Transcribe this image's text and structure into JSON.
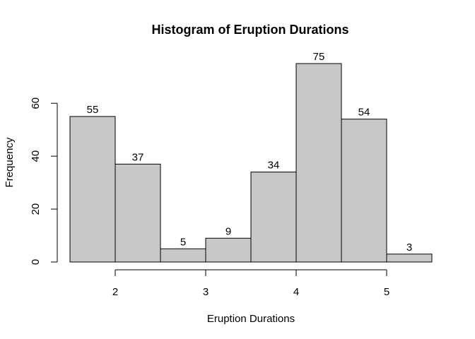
{
  "chart_data": {
    "type": "bar",
    "title": "Histogram of Eruption Durations",
    "xlabel": "Eruption Durations",
    "ylabel": "Frequency",
    "bins": [
      {
        "start": 1.5,
        "end": 2.0,
        "value": 55
      },
      {
        "start": 2.0,
        "end": 2.5,
        "value": 37
      },
      {
        "start": 2.5,
        "end": 3.0,
        "value": 5
      },
      {
        "start": 3.0,
        "end": 3.5,
        "value": 9
      },
      {
        "start": 3.5,
        "end": 4.0,
        "value": 34
      },
      {
        "start": 4.0,
        "end": 4.5,
        "value": 75
      },
      {
        "start": 4.5,
        "end": 5.0,
        "value": 54
      },
      {
        "start": 5.0,
        "end": 5.5,
        "value": 3
      }
    ],
    "data_labels": [
      "55",
      "37",
      "5",
      "9",
      "34",
      "75",
      "54",
      "3"
    ],
    "xticks": [
      2,
      3,
      4,
      5
    ],
    "xtick_labels": [
      "2",
      "3",
      "4",
      "5"
    ],
    "yticks": [
      0,
      20,
      40,
      60
    ],
    "ytick_labels": [
      "0",
      "20",
      "40",
      "60"
    ],
    "xlim": [
      1.5,
      5.5
    ],
    "ylim": [
      0,
      75
    ],
    "grid": false,
    "legend": "none",
    "bar_fill": "#c8c8c8",
    "bar_stroke": "#000000"
  }
}
